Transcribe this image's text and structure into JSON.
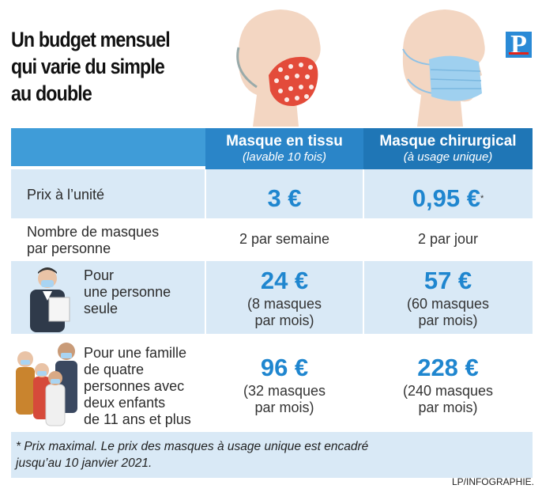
{
  "title": "Un budget mensuel\nqui varie du simple\nau double",
  "logo": "P",
  "columns": [
    {
      "title": "Masque en tissu",
      "subtitle": "(lavable 10 fois)"
    },
    {
      "title": "Masque chirurgical",
      "subtitle": "(à usage unique)"
    }
  ],
  "rows": {
    "price": {
      "label": "Prix à l’unité",
      "v1": "3 €",
      "v2": "0,95 €",
      "v2_mark": "*"
    },
    "count": {
      "label_l1": "Nombre de masques",
      "label_l2": "par personne",
      "v1": "2 par semaine",
      "v2": "2 par jour"
    },
    "single": {
      "label_l1": "Pour",
      "label_l2": "une personne",
      "label_l3": "seule",
      "v1": "24 €",
      "v1_l1": "(8 masques",
      "v1_l2": "par mois)",
      "v2": "57 €",
      "v2_l1": "(60 masques",
      "v2_l2": "par mois)"
    },
    "family": {
      "label_l1": "Pour une famille",
      "label_l2": "de quatre",
      "label_l3": "personnes avec",
      "label_l4": "deux enfants",
      "label_l5": "de 11 ans et plus",
      "v1": "96 €",
      "v1_l1": "(32 masques",
      "v1_l2": "par mois)",
      "v2": "228 €",
      "v2_l1": "(240 masques",
      "v2_l2": "par mois)"
    }
  },
  "footnote_l1": "* Prix maximal. Le prix des masques à usage unique est encadré",
  "footnote_l2": "jusqu’au 10 janvier 2021.",
  "credit": "LP/INFOGRAPHIE.",
  "colors": {
    "accent": "#1f86cf",
    "header": "#2a85c8",
    "row_tint": "#d9e9f6",
    "logo_red": "#e2241b"
  }
}
